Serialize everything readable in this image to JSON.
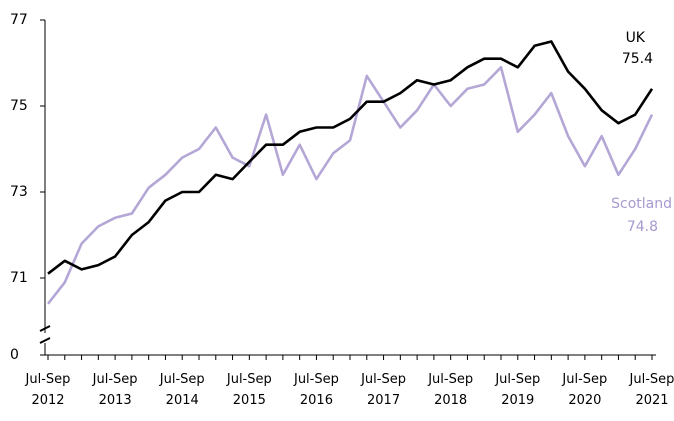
{
  "chart_data": {
    "type": "line",
    "categories": [
      "Jul-Sep 2012",
      null,
      null,
      null,
      "Jul-Sep 2013",
      null,
      null,
      null,
      "Jul-Sep 2014",
      null,
      null,
      null,
      "Jul-Sep 2015",
      null,
      null,
      null,
      "Jul-Sep 2016",
      null,
      null,
      null,
      "Jul-Sep 2017",
      null,
      null,
      null,
      "Jul-Sep 2018",
      null,
      null,
      null,
      "Jul-Sep 2019",
      null,
      null,
      null,
      "Jul-Sep 2020",
      null,
      null,
      null,
      "Jul-Sep 2021"
    ],
    "series": [
      {
        "name": "UK",
        "color": "#000000",
        "values": [
          71.1,
          71.4,
          71.2,
          71.3,
          71.5,
          72.0,
          72.3,
          72.8,
          73.0,
          73.0,
          73.4,
          73.3,
          73.7,
          74.1,
          74.1,
          74.4,
          74.5,
          74.5,
          74.7,
          75.1,
          75.1,
          75.3,
          75.6,
          75.5,
          75.6,
          75.9,
          76.1,
          76.1,
          75.9,
          76.4,
          76.5,
          75.8,
          75.4,
          74.9,
          74.6,
          74.8,
          75.4
        ]
      },
      {
        "name": "Scotland",
        "color": "#b4a7d6",
        "values": [
          70.4,
          70.9,
          71.8,
          72.2,
          72.4,
          72.5,
          73.1,
          73.4,
          73.8,
          74.0,
          74.5,
          73.8,
          73.6,
          74.8,
          73.4,
          74.1,
          73.3,
          73.9,
          74.2,
          75.7,
          75.1,
          74.5,
          74.9,
          75.5,
          75.0,
          75.4,
          75.5,
          75.9,
          74.4,
          74.8,
          75.3,
          74.3,
          73.6,
          74.3,
          73.4,
          74.0,
          74.8
        ]
      }
    ],
    "ylim": [
      0,
      77
    ],
    "yticks": [
      0,
      71,
      73,
      75,
      77
    ],
    "axis_break": true,
    "grid": false
  }
}
